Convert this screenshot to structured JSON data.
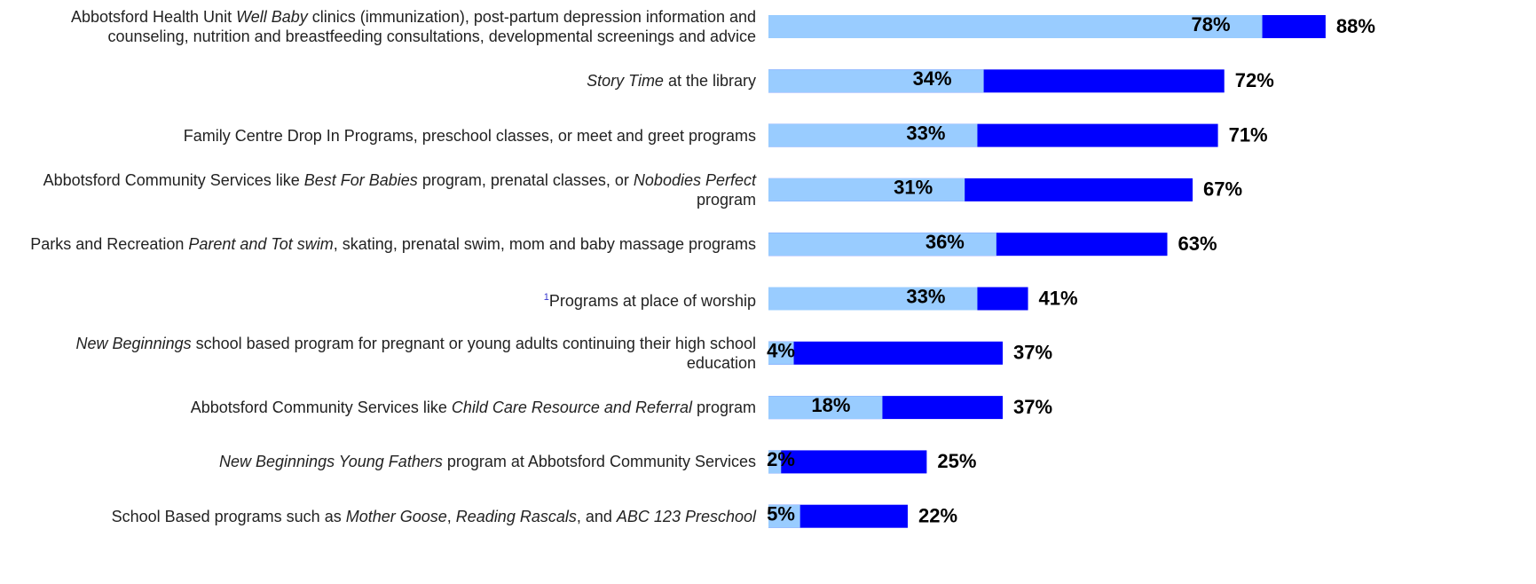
{
  "chart_data": {
    "type": "overlap_bar",
    "categories": [
      [
        {
          "text": "Abbotsford Health Unit "
        },
        {
          "text": "Well Baby",
          "italic": true
        },
        {
          "text": " clinics (immunization), post-partum depression information and counseling, nutrition and breastfeeding consultations, developmental screenings and advice"
        }
      ],
      [
        {
          "text": "Story Time",
          "italic": true
        },
        {
          "text": " at the library"
        }
      ],
      [
        {
          "text": "Family Centre Drop In Programs, preschool classes, or meet and greet programs"
        }
      ],
      [
        {
          "text": "Abbotsford Community Services like "
        },
        {
          "text": "Best For Babies",
          "italic": true
        },
        {
          "text": " program, prenatal classes, or "
        },
        {
          "text": "Nobodies Perfect",
          "italic": true
        },
        {
          "text": " program"
        }
      ],
      [
        {
          "text": "Parks and Recreation "
        },
        {
          "text": "Parent and Tot swim",
          "italic": true
        },
        {
          "text": ", skating, prenatal swim, mom and baby massage programs"
        }
      ],
      [
        {
          "text": "1",
          "sup": true
        },
        {
          "text": "Programs at place of worship"
        }
      ],
      [
        {
          "text": "New Beginnings",
          "italic": true
        },
        {
          "text": " school based program for pregnant or young adults continuing their high school education"
        }
      ],
      [
        {
          "text": "Abbotsford Community Services like "
        },
        {
          "text": "Child Care Resource and Referral",
          "italic": true
        },
        {
          "text": " program"
        }
      ],
      [
        {
          "text": "New Beginnings Young Fathers",
          "italic": true
        },
        {
          "text": " program at Abbotsford Community Services"
        }
      ],
      [
        {
          "text": "School Based programs such as "
        },
        {
          "text": "Mother Goose",
          "italic": true
        },
        {
          "text": ", "
        },
        {
          "text": "Reading Rascals",
          "italic": true
        },
        {
          "text": ", and "
        },
        {
          "text": "ABC 123 Preschool",
          "italic": true
        }
      ]
    ],
    "series": [
      {
        "color": "#0000ff",
        "values": [
          88,
          72,
          71,
          67,
          63,
          41,
          37,
          37,
          25,
          22
        ],
        "value_labels": [
          "88%",
          "72%",
          "71%",
          "67%",
          "63%",
          "41%",
          "37%",
          "37%",
          "25%",
          "22%"
        ]
      },
      {
        "color": "#99ccff",
        "values": [
          78,
          34,
          33,
          31,
          36,
          33,
          4,
          18,
          2,
          5
        ],
        "value_labels": [
          "78%",
          "34%",
          "33%",
          "31%",
          "36%",
          "33%",
          "4%",
          "18%",
          "2%",
          "5%"
        ]
      }
    ],
    "xlim": [
      0,
      100
    ]
  }
}
